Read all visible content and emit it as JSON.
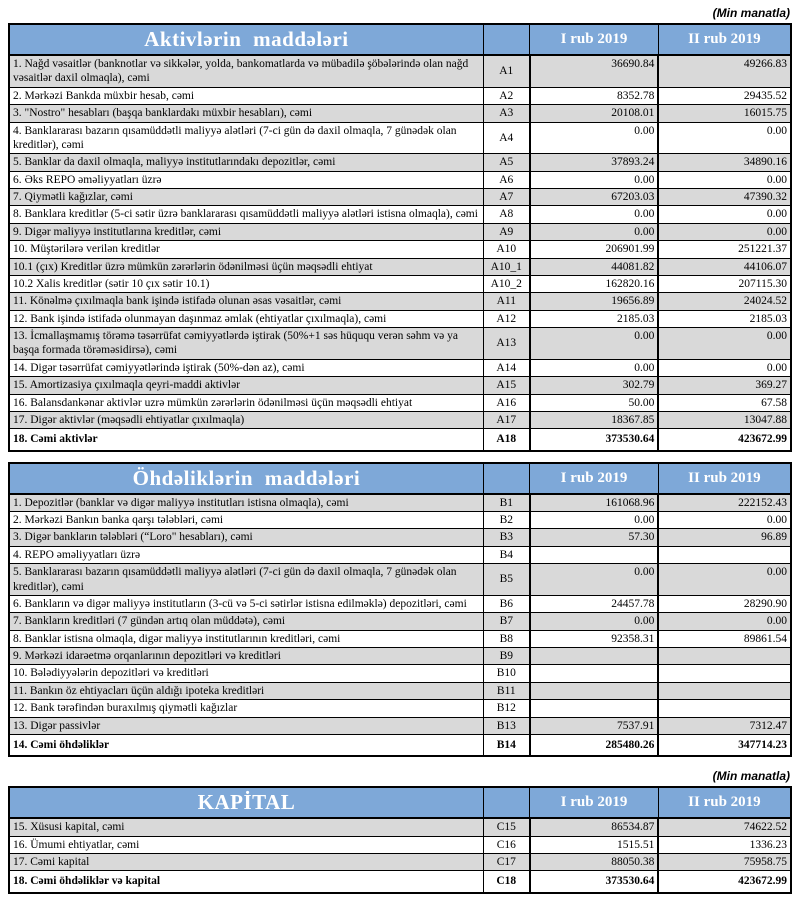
{
  "unit_note": "(Min manatla)",
  "colors": {
    "header_blue": "#7EA8D8",
    "row_gray": "#D9D9D9",
    "row_white": "#FFFFFF",
    "border": "#000000",
    "header_text": "#FFFFFF"
  },
  "tables": [
    {
      "id": "assets",
      "title": "Aktivlərin maddələri",
      "columns": [
        "I rub 2019",
        "II rub 2019"
      ],
      "rows": [
        {
          "label": "1. Nağd vəsaitlər (banknotlar və sikkələr, yolda, bankomatlarda və mübadilə şöbələrində olan nağd vəsaitlər daxil olmaqla), cəmi",
          "code": "A1",
          "v1": "36690.84",
          "v2": "49266.83",
          "total": false
        },
        {
          "label": "2. Mərkəzi Bankda müxbir hesab, cəmi",
          "code": "A2",
          "v1": "8352.78",
          "v2": "29435.52",
          "total": false
        },
        {
          "label": "3. \"Nostro\" hesabları (başqa banklardakı müxbir hesabları), cəmi",
          "code": "A3",
          "v1": "20108.01",
          "v2": "16015.75",
          "total": false
        },
        {
          "label": "4. Banklararası bazarın qısamüddətli maliyyə alətləri (7-ci gün də daxil olmaqla, 7 günədək olan kreditlər), cəmi",
          "code": "A4",
          "v1": "0.00",
          "v2": "0.00",
          "total": false
        },
        {
          "label": "5. Banklar da daxil olmaqla, maliyyə institutlarındakı depozitlər, cəmi",
          "code": "A5",
          "v1": "37893.24",
          "v2": "34890.16",
          "total": false
        },
        {
          "label": "6. Əks REPO əməliyyatları üzrə",
          "code": "A6",
          "v1": "0.00",
          "v2": "0.00",
          "total": false
        },
        {
          "label": "7. Qiymətli kağızlar, cəmi",
          "code": "A7",
          "v1": "67203.03",
          "v2": "47390.32",
          "total": false
        },
        {
          "label": "8. Banklara kreditlər (5-ci sətir üzrə banklararası qısamüddətli maliyyə alətləri istisna olmaqla), cəmi",
          "code": "A8",
          "v1": "0.00",
          "v2": "0.00",
          "total": false
        },
        {
          "label": "9. Digər maliyyə institutlarına kreditlər, cəmi",
          "code": "A9",
          "v1": "0.00",
          "v2": "0.00",
          "total": false
        },
        {
          "label": "10. Müştərilərə verilən kreditlər",
          "code": "A10",
          "v1": "206901.99",
          "v2": "251221.37",
          "total": false
        },
        {
          "label": "10.1 (çıx) Kreditlər üzrə mümkün zərərlərin ödənilməsi üçün məqsədli ehtiyat",
          "code": "A10_1",
          "v1": "44081.82",
          "v2": "44106.07",
          "total": false
        },
        {
          "label": "10.2 Xalis kreditlər (sətir 10 çıx sətir 10.1)",
          "code": "A10_2",
          "v1": "162820.16",
          "v2": "207115.30",
          "total": false
        },
        {
          "label": "11. Könəlmə çıxılmaqla bank işində istifadə olunan əsas vəsaitlər, cəmi",
          "code": "A11",
          "v1": "19656.89",
          "v2": "24024.52",
          "total": false
        },
        {
          "label": "12. Bank işində istifadə olunmayan daşınmaz əmlak (ehtiyatlar çıxılmaqla), cəmi",
          "code": "A12",
          "v1": "2185.03",
          "v2": "2185.03",
          "total": false
        },
        {
          "label": "13. İcmallaşmamış törəmə təsərrüfat cəmiyyətlərdə iştirak (50%+1 səs hüququ verən səhm və ya başqa formada törəməsidirsə), cəmi",
          "code": "A13",
          "v1": "0.00",
          "v2": "0.00",
          "total": false
        },
        {
          "label": "14. Digər təsərrüfat cəmiyyətlərində iştirak (50%-dən az), cəmi",
          "code": "A14",
          "v1": "0.00",
          "v2": "0.00",
          "total": false
        },
        {
          "label": "15. Amortizasiya çıxılmaqla qeyri-maddi aktivlər",
          "code": "A15",
          "v1": "302.79",
          "v2": "369.27",
          "total": false
        },
        {
          "label": "16. Balansdankənar aktivlər uzrə mümkün zərərlərin ödənilməsi üçün məqsədli ehtiyat",
          "code": "A16",
          "v1": "50.00",
          "v2": "67.58",
          "total": false
        },
        {
          "label": "17. Digər aktivlər (məqsədli ehtiyatlar çıxılmaqla)",
          "code": "A17",
          "v1": "18367.85",
          "v2": "13047.88",
          "total": false
        },
        {
          "label": "18. Cəmi aktivlər",
          "code": "A18",
          "v1": "373530.64",
          "v2": "423672.99",
          "total": true
        }
      ]
    },
    {
      "id": "liabilities",
      "title": "Öhdəliklərin maddələri",
      "columns": [
        "I rub 2019",
        "II rub 2019"
      ],
      "rows": [
        {
          "label": "1. Depozitlər (banklar və digər maliyyə institutları istisna olmaqla), cəmi",
          "code": "B1",
          "v1": "161068.96",
          "v2": "222152.43",
          "total": false
        },
        {
          "label": "2. Mərkəzi Bankın banka qarşı tələbləri, cəmi",
          "code": "B2",
          "v1": "0.00",
          "v2": "0.00",
          "total": false
        },
        {
          "label": "3. Digər bankların tələbləri (“Loro\" hesabları), cəmi",
          "code": "B3",
          "v1": "57.30",
          "v2": "96.89",
          "total": false
        },
        {
          "label": "4. REPO əməliyyatları  üzrə",
          "code": "B4",
          "v1": "",
          "v2": "",
          "total": false
        },
        {
          "label": "5. Banklararası bazarın qısamüddətli maliyyə alətləri (7-ci gün də daxil olmaqla, 7 günədək olan kreditlər), cəmi",
          "code": "B5",
          "v1": "0.00",
          "v2": "0.00",
          "total": false
        },
        {
          "label": "6. Bankların və digər maliyyə institutların (3-cü və 5-ci sətirlər istisna edilməklə) depozitləri, cəmi",
          "code": "B6",
          "v1": "24457.78",
          "v2": "28290.90",
          "total": false
        },
        {
          "label": "7. Bankların kreditləri (7 gündən artıq olan müddətə), cəmi",
          "code": "B7",
          "v1": "0.00",
          "v2": "0.00",
          "total": false
        },
        {
          "label": "8. Banklar istisna olmaqla, digər maliyyə institutlarının kreditləri, cəmi",
          "code": "B8",
          "v1": "92358.31",
          "v2": "89861.54",
          "total": false
        },
        {
          "label": "9. Mərkəzi idarəetmə orqanlarının depozitləri və kreditləri",
          "code": "B9",
          "v1": "",
          "v2": "",
          "total": false
        },
        {
          "label": "10. Bələdiyyələrin depozitləri və kreditləri",
          "code": "B10",
          "v1": "",
          "v2": "",
          "total": false
        },
        {
          "label": "11. Bankın öz ehtiyacları üçün aldığı ipoteka kreditləri",
          "code": "B11",
          "v1": "",
          "v2": "",
          "total": false
        },
        {
          "label": "12. Bank tərəfindən buraxılmış qiymətli kağızlar",
          "code": "B12",
          "v1": "",
          "v2": "",
          "total": false
        },
        {
          "label": "13. Digər passivlər",
          "code": "B13",
          "v1": "7537.91",
          "v2": "7312.47",
          "total": false
        },
        {
          "label": "14. Cəmi öhdəliklər",
          "code": "B14",
          "v1": "285480.26",
          "v2": "347714.23",
          "total": true
        }
      ]
    },
    {
      "id": "capital",
      "title": "KAPİTAL",
      "columns": [
        "I rub 2019",
        "II rub 2019"
      ],
      "rows": [
        {
          "label": "15. Xüsusi kapital, cəmi",
          "code": "C15",
          "v1": "86534.87",
          "v2": "74622.52",
          "total": false
        },
        {
          "label": "16. Ümumi ehtiyatlar, cəmi",
          "code": "C16",
          "v1": "1515.51",
          "v2": "1336.23",
          "total": false
        },
        {
          "label": "17. Cəmi kapital",
          "code": "C17",
          "v1": "88050.38",
          "v2": "75958.75",
          "total": false
        },
        {
          "label": "18. Cəmi öhdəliklər və kapital",
          "code": "C18",
          "v1": "373530.64",
          "v2": "423672.99",
          "total": true
        }
      ]
    }
  ]
}
